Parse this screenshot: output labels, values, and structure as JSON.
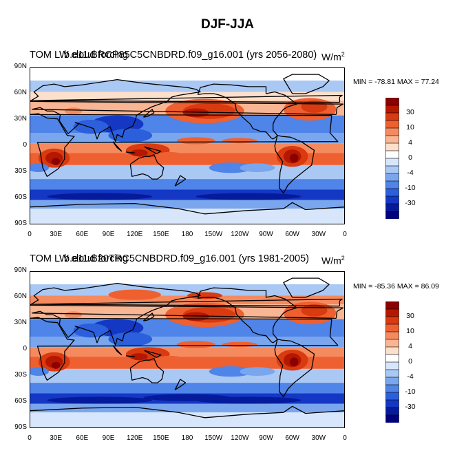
{
  "title": "DJF-JJA",
  "panels": [
    {
      "title": "TOM LW cloud forcing",
      "case": "b.e11.BRCP85C5CNBDRD.f09_g16.001 (yrs 2056-2080)",
      "units": "W/m",
      "units_sup": "2",
      "minmax": "MIN = -78.81 MAX =  77.24"
    },
    {
      "title": "TOM LW cloud forcing",
      "case": "b.e11.B20TRC5CNBDRD.f09_g16.001 (yrs 1981-2005)",
      "units": "W/m",
      "units_sup": "2",
      "minmax": "MIN = -85.36 MAX =  86.09"
    }
  ],
  "lat_ticks": [
    "90N",
    "60N",
    "30N",
    "0",
    "30S",
    "60S",
    "90S"
  ],
  "lon_ticks": [
    "0",
    "30E",
    "60E",
    "90E",
    "120E",
    "150E",
    "180",
    "150W",
    "120W",
    "90W",
    "60W",
    "30W",
    "0"
  ],
  "colorbar": {
    "labels": [
      "30",
      "10",
      "4",
      "0",
      "-4",
      "-10",
      "-30"
    ],
    "colors": [
      "#8b0000",
      "#b51800",
      "#d93a10",
      "#ee6030",
      "#f58a5e",
      "#f9b694",
      "#fde0cc",
      "#ffffff",
      "#d7e6fa",
      "#aac8f4",
      "#7aa6ee",
      "#4f84e8",
      "#2b5fdc",
      "#1438c4",
      "#051b9c",
      "#00007a"
    ]
  }
}
